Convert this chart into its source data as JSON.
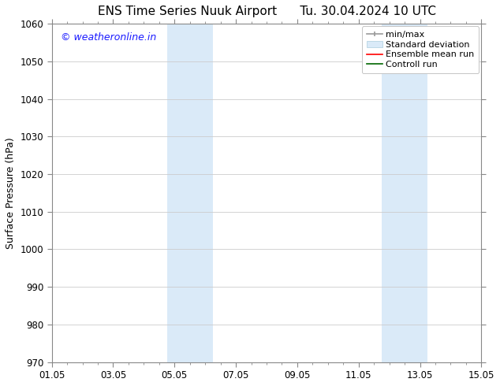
{
  "title_left": "ENS Time Series Nuuk Airport",
  "title_right": "Tu. 30.04.2024 10 UTC",
  "ylabel": "Surface Pressure (hPa)",
  "ylim": [
    970,
    1060
  ],
  "yticks": [
    970,
    980,
    990,
    1000,
    1010,
    1020,
    1030,
    1040,
    1050,
    1060
  ],
  "xtick_labels": [
    "01.05",
    "03.05",
    "05.05",
    "07.05",
    "09.05",
    "11.05",
    "13.05",
    "15.05"
  ],
  "xtick_positions": [
    0,
    2,
    4,
    6,
    8,
    10,
    12,
    14
  ],
  "x_minor_positions": [
    0.5,
    1,
    1.5,
    2.5,
    3,
    3.5,
    4.5,
    5,
    5.5,
    6.5,
    7,
    7.5,
    8.5,
    9,
    9.5,
    10.5,
    11,
    11.5,
    12.5,
    13,
    13.5
  ],
  "watermark": "© weatheronline.in",
  "watermark_color": "#1a1aff",
  "bg_color": "#ffffff",
  "plot_bg_color": "#ffffff",
  "shade_regions": [
    {
      "x_start": 3.75,
      "x_end": 5.25,
      "color": "#daeaf8"
    },
    {
      "x_start": 10.75,
      "x_end": 12.25,
      "color": "#daeaf8"
    }
  ],
  "grid_color": "#cccccc",
  "spine_color": "#888888",
  "title_fontsize": 11,
  "axis_fontsize": 9,
  "tick_fontsize": 8.5,
  "watermark_fontsize": 9,
  "legend_fontsize": 8,
  "x_start": 0,
  "x_end": 14
}
